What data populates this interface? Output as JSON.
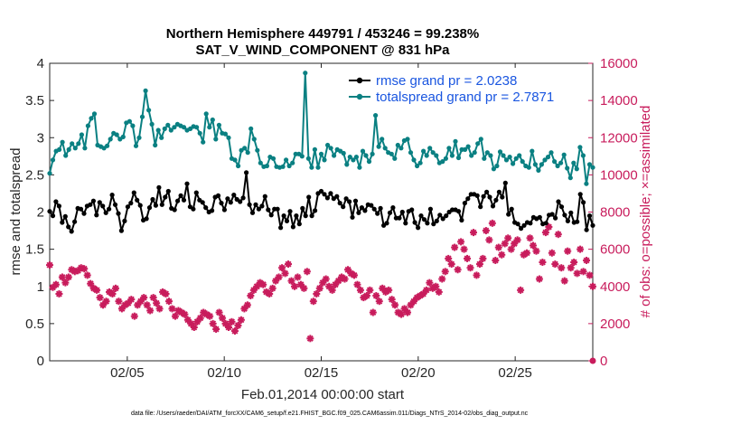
{
  "title_line1": "Northern Hemisphere 449791 / 453246 = 99.238%",
  "title_line2": "SAT_V_WIND_COMPONENT @ 831 hPa",
  "xlabel": "Feb.01,2014 00:00:00 start",
  "footer": "data file: /Users/raeder/DAI/ATM_forcXX/CAM6_setup/f.e21.FHIST_BGC.f09_025.CAM6assim.011/Diags_NTrS_2014-02/obs_diag_output.nc",
  "chart_data": {
    "type": "line",
    "x_label": "Feb.01,2014 00:00:00 start",
    "xlim": [
      1,
      29
    ],
    "x_ticks": [
      5,
      10,
      15,
      20,
      25
    ],
    "x_tick_labels": [
      "02/05",
      "02/10",
      "02/15",
      "02/20",
      "02/25"
    ],
    "ylabel_left": "rmse and totalspread",
    "ylim_left": [
      0,
      4
    ],
    "y_ticks_left": [
      0,
      0.5,
      1,
      1.5,
      2,
      2.5,
      3,
      3.5,
      4
    ],
    "ylabel_right": "# of obs: o=possible; ×=assimilated",
    "ylim_right": [
      0,
      16000
    ],
    "y_ticks_right": [
      0,
      2000,
      4000,
      6000,
      8000,
      10000,
      12000,
      14000,
      16000
    ],
    "grid": false,
    "legend_position": "top-right",
    "colors": {
      "rmse": "#000000",
      "spread": "#0a8082",
      "obs": "#c81c5c"
    },
    "series": [
      {
        "name": "rmse grand pr = 2.0238",
        "axis": "left",
        "values": [
          2.01,
          1.95,
          2.14,
          2.08,
          1.86,
          1.94,
          1.8,
          1.74,
          1.87,
          2.05,
          2.04,
          1.98,
          2.08,
          2.1,
          2.15,
          1.96,
          2.13,
          2.08,
          1.99,
          2.04,
          2.23,
          2.1,
          1.98,
          1.75,
          1.88,
          2.07,
          2.12,
          2.26,
          2.16,
          2.09,
          1.89,
          1.91,
          2.06,
          2.17,
          2.09,
          2.33,
          2.1,
          2.2,
          2.28,
          2.05,
          2.03,
          2.15,
          2.22,
          2.16,
          2.38,
          2.07,
          2.04,
          2.26,
          2.16,
          2.13,
          2.06,
          2.0,
          2.02,
          2.2,
          2.22,
          2.12,
          2.03,
          2.18,
          2.13,
          2.23,
          2.17,
          2.14,
          2.19,
          2.53,
          2.1,
          1.99,
          2.1,
          2.04,
          2.08,
          2.21,
          2.03,
          1.96,
          2.04,
          2.04,
          1.79,
          1.95,
          1.88,
          2.01,
          1.8,
          1.95,
          1.84,
          2.05,
          1.95,
          2.2,
          1.95,
          2.02,
          2.25,
          2.28,
          2.24,
          2.19,
          2.25,
          2.18,
          2.21,
          2.12,
          2.07,
          2.18,
          2.14,
          1.93,
          2.15,
          1.99,
          2.06,
          2.02,
          2.1,
          2.09,
          2.04,
          1.98,
          2.05,
          1.82,
          1.85,
          1.99,
          2.06,
          1.92,
          1.92,
          2.0,
          1.85,
          2.01,
          2.03,
          1.86,
          1.79,
          1.95,
          1.9,
          1.85,
          2.04,
          1.84,
          1.88,
          1.96,
          1.91,
          1.95,
          2.0,
          2.03,
          2.03,
          2.01,
          1.89,
          2.12,
          2.18,
          2.24,
          2.24,
          2.22,
          2.07,
          2.21,
          2.27,
          2.2,
          2.08,
          2.16,
          2.27,
          2.2,
          2.39,
          1.97,
          2.04,
          1.86,
          1.84,
          1.78,
          1.82,
          1.86,
          1.85,
          1.93,
          1.91,
          1.93,
          1.84,
          1.85,
          1.96,
          1.97,
          1.92,
          2.14,
          2.07,
          1.96,
          1.88,
          1.99,
          1.86,
          1.87,
          2.24,
          2.13,
          1.76,
          1.95,
          1.82
        ]
      },
      {
        "name": "totalspread grand pr = 2.7871",
        "axis": "left",
        "values": [
          2.52,
          2.7,
          2.82,
          2.84,
          2.94,
          2.76,
          2.84,
          2.92,
          2.86,
          2.92,
          3.04,
          2.86,
          3.16,
          3.26,
          3.32,
          2.9,
          2.88,
          2.86,
          2.89,
          2.98,
          3.06,
          3.04,
          2.98,
          3.01,
          3.2,
          3.22,
          3.16,
          2.89,
          3.0,
          3.28,
          3.63,
          3.37,
          3.18,
          2.9,
          3.1,
          3.0,
          3.12,
          3.17,
          3.1,
          3.14,
          3.18,
          3.16,
          3.14,
          3.1,
          3.12,
          3.15,
          3.14,
          3.06,
          2.94,
          3.32,
          3.14,
          3.24,
          2.98,
          3.17,
          3.06,
          3.05,
          3.0,
          2.72,
          2.7,
          2.62,
          2.83,
          2.86,
          2.8,
          3.12,
          2.98,
          2.83,
          2.66,
          2.61,
          2.62,
          2.74,
          2.72,
          2.61,
          2.6,
          2.61,
          2.7,
          2.62,
          2.66,
          2.78,
          2.78,
          2.75,
          3.87,
          2.72,
          2.6,
          2.84,
          2.6,
          2.78,
          2.7,
          2.9,
          2.86,
          2.76,
          2.84,
          2.82,
          2.79,
          2.64,
          2.74,
          2.7,
          2.74,
          2.6,
          2.82,
          2.76,
          2.68,
          2.78,
          3.3,
          2.88,
          2.98,
          2.86,
          2.8,
          2.78,
          2.72,
          2.9,
          2.86,
          2.96,
          2.98,
          2.8,
          2.7,
          2.62,
          2.66,
          2.82,
          2.76,
          2.86,
          2.8,
          2.76,
          2.66,
          2.68,
          2.72,
          2.86,
          2.76,
          2.95,
          2.73,
          2.84,
          2.84,
          2.88,
          2.76,
          2.8,
          2.92,
          2.98,
          2.72,
          2.8,
          2.76,
          2.58,
          2.62,
          2.81,
          2.76,
          2.7,
          2.74,
          2.65,
          2.72,
          2.76,
          2.68,
          2.62,
          2.6,
          2.82,
          2.64,
          2.56,
          2.64,
          2.7,
          2.74,
          2.8,
          2.68,
          2.62,
          2.66,
          2.77,
          2.59,
          2.46,
          2.66,
          2.58,
          2.87,
          2.76,
          2.38,
          2.64,
          2.6
        ]
      },
      {
        "name": "obs",
        "axis": "right",
        "values": [
          5150,
          3950,
          4100,
          3600,
          4500,
          4200,
          4500,
          4900,
          4800,
          4850,
          5000,
          4950,
          4600,
          4150,
          3900,
          3800,
          3400,
          3000,
          3200,
          3700,
          3600,
          3900,
          3200,
          2800,
          3000,
          3100,
          3300,
          2400,
          3000,
          3200,
          3400,
          3000,
          2700,
          3400,
          3100,
          2800,
          3700,
          3600,
          3200,
          2800,
          2400,
          2700,
          2600,
          2500,
          2200,
          2000,
          1800,
          2100,
          2300,
          2600,
          2500,
          2400,
          2000,
          1700,
          2600,
          2300,
          2000,
          1800,
          2100,
          1600,
          1900,
          2200,
          2800,
          3000,
          3500,
          3800,
          4000,
          4200,
          4100,
          3700,
          3600,
          3900,
          4300,
          4500,
          5000,
          4700,
          5200,
          4300,
          4000,
          4500,
          4100,
          3900,
          4800,
          1200,
          3200,
          3600,
          3900,
          4200,
          4400,
          4000,
          3800,
          4100,
          4300,
          4500,
          4400,
          4900,
          4700,
          4600,
          4100,
          3800,
          3400,
          3500,
          3800,
          2600,
          3500,
          3200,
          3900,
          3700,
          3800,
          3300,
          3000,
          2600,
          2500,
          2800,
          2600,
          3000,
          3200,
          3400,
          3500,
          3600,
          3800,
          4200,
          3900,
          4000,
          3700,
          4400,
          4800,
          5500,
          5200,
          6100,
          4900,
          6400,
          6000,
          5500,
          5000,
          6900,
          4600,
          5200,
          5500,
          7000,
          6500,
          7400,
          5400,
          6100,
          5700,
          6300,
          6600,
          6000,
          6300,
          6500,
          3800,
          5700,
          5800,
          6600,
          6200,
          5900,
          4400,
          5300,
          6900,
          7200,
          5800,
          5200,
          6800,
          5000,
          4300,
          5900,
          5000,
          5300,
          4700,
          6000,
          4800,
          5400,
          4600,
          4000
        ]
      }
    ]
  }
}
